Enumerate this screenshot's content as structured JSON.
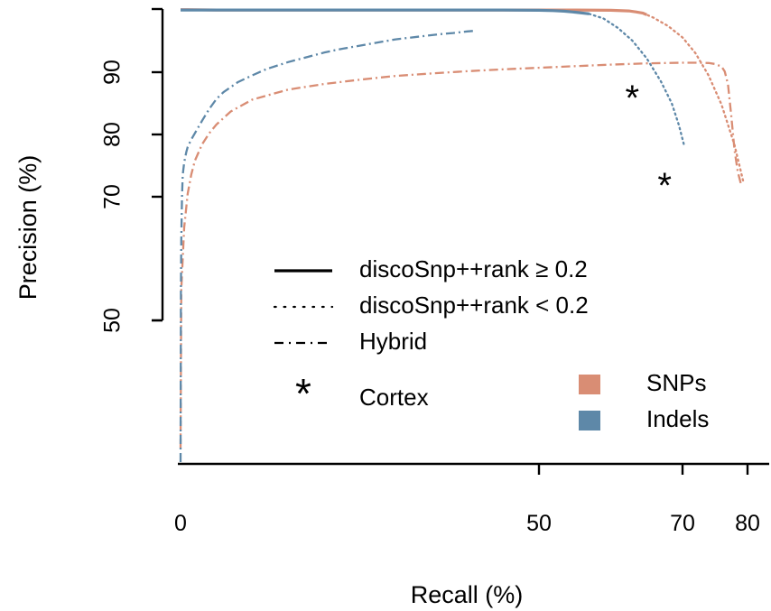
{
  "chart_data": {
    "type": "line",
    "xlabel": "Recall (%)",
    "ylabel": "Precision (%)",
    "x_axis": {
      "ticks": [
        0,
        50,
        70,
        80
      ],
      "tick_labels": [
        "0",
        "50",
        "70",
        "80"
      ],
      "range": [
        0,
        82
      ]
    },
    "y_axis": {
      "ticks": [
        50,
        70,
        80,
        90
      ],
      "tick_labels": [
        "50",
        "70",
        "80",
        "90"
      ],
      "range": [
        40,
        100
      ],
      "scale": "nonlinear"
    },
    "grid": false,
    "colors": {
      "SNPs": "#d98d74",
      "Indels": "#5e88a8"
    },
    "line_styles": {
      "rank_high": "solid",
      "rank_low": "dotted",
      "hybrid": "dash-dot"
    },
    "series": [
      {
        "category": "SNPs",
        "style": "rank_high",
        "x": [
          0,
          1,
          5,
          10,
          20,
          30,
          40,
          50,
          55,
          60,
          62.5,
          63.5,
          64.5,
          65
        ],
        "y": [
          99.9,
          99.9,
          99.85,
          99.85,
          99.85,
          99.85,
          99.85,
          99.85,
          99.85,
          99.8,
          99.7,
          99.55,
          99.35,
          99.1
        ]
      },
      {
        "category": "SNPs",
        "style": "rank_low",
        "x": [
          64.5,
          66,
          68,
          70,
          72,
          74,
          76,
          78,
          79.4
        ],
        "y": [
          99.35,
          98.6,
          97.3,
          95.5,
          93,
          89.5,
          84.8,
          78.3,
          72.2
        ]
      },
      {
        "category": "SNPs",
        "style": "hybrid",
        "x": [
          0,
          0.1,
          0.5,
          1,
          1.5,
          2,
          3,
          4,
          5,
          7,
          10,
          15,
          20,
          25,
          30,
          35,
          40,
          45,
          50,
          55,
          60,
          65,
          70,
          72,
          74,
          75,
          76,
          76.5,
          77,
          77.5,
          78,
          78.5,
          79
        ],
        "y": [
          41,
          55,
          65,
          70.5,
          73.6,
          75.8,
          78.4,
          80.2,
          81.6,
          83.7,
          85.6,
          87.2,
          88.1,
          88.8,
          89.4,
          89.8,
          90.15,
          90.45,
          90.7,
          90.95,
          91.2,
          91.4,
          91.5,
          91.5,
          91.45,
          91.3,
          90.9,
          90.1,
          88,
          83,
          77.5,
          74,
          72
        ]
      },
      {
        "category": "Indels",
        "style": "rank_high",
        "x": [
          0,
          1,
          5,
          10,
          20,
          30,
          40,
          45,
          50,
          52,
          53.5,
          55,
          57
        ],
        "y": [
          99.85,
          99.85,
          99.85,
          99.85,
          99.85,
          99.85,
          99.85,
          99.85,
          99.8,
          99.75,
          99.65,
          99.5,
          99.25
        ]
      },
      {
        "category": "Indels",
        "style": "rank_low",
        "x": [
          57,
          59,
          61,
          63,
          65,
          67,
          68.5,
          69.5,
          70.3
        ],
        "y": [
          99.25,
          98.5,
          97,
          95,
          92.2,
          88.5,
          85,
          81.5,
          78
        ]
      },
      {
        "category": "Indels",
        "style": "hybrid",
        "x": [
          0,
          0.05,
          0.1,
          0.2,
          0.3,
          0.5,
          0.8,
          1,
          1.5,
          2,
          3,
          4,
          5,
          6,
          8,
          10,
          12,
          15,
          18,
          20,
          22,
          25,
          28,
          30,
          33,
          36,
          38,
          40,
          41
        ],
        "y": [
          40,
          55,
          63,
          70,
          73.5,
          75.5,
          77.2,
          78,
          79.2,
          80.2,
          82.2,
          84.1,
          85.7,
          86.8,
          88.4,
          89.5,
          90.5,
          91.6,
          92.5,
          93.1,
          93.6,
          94.2,
          94.8,
          95.2,
          95.6,
          96,
          96.2,
          96.45,
          96.55
        ]
      }
    ],
    "cortex_points": [
      {
        "category": "Indels",
        "x": 63,
        "y": 86.5
      },
      {
        "category": "SNPs",
        "x": 67.5,
        "y": 72.5
      }
    ],
    "legend": {
      "styles": [
        {
          "style": "solid",
          "label": "discoSnp++rank ≥ 0.2"
        },
        {
          "style": "dotted",
          "label": "discoSnp++rank < 0.2"
        },
        {
          "style": "dash-dot",
          "label": "Hybrid"
        },
        {
          "style": "star",
          "label": "Cortex"
        }
      ],
      "categories": [
        {
          "label": "SNPs",
          "color": "#d98d74"
        },
        {
          "label": "Indels",
          "color": "#5e88a8"
        }
      ]
    }
  }
}
